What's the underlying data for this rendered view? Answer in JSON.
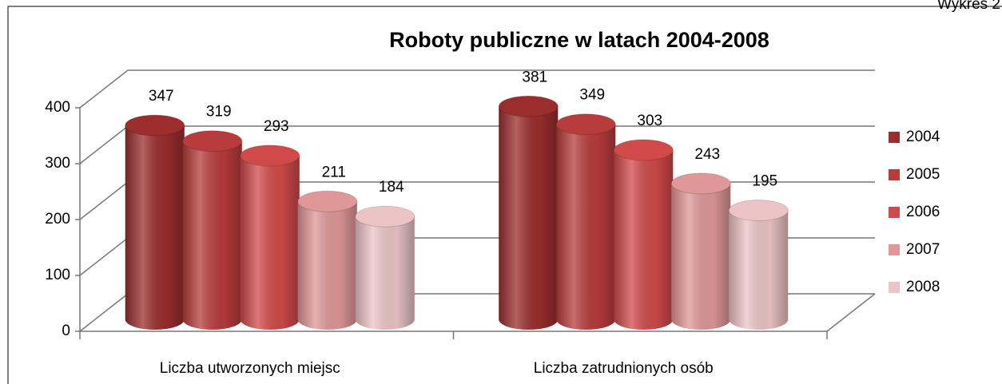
{
  "chart_data": {
    "type": "bar3d",
    "title": "Roboty publiczne w latach 2004-2008",
    "caption": "Wykres 2",
    "categories": [
      "Liczba utworzonych  miejsc",
      "Liczba zatrudnionych osób"
    ],
    "series": [
      {
        "name": "2004",
        "color": "#9b2d2d",
        "values": [
          347,
          381
        ]
      },
      {
        "name": "2005",
        "color": "#b83c3c",
        "values": [
          319,
          349
        ]
      },
      {
        "name": "2006",
        "color": "#d04a4a",
        "values": [
          293,
          303
        ]
      },
      {
        "name": "2007",
        "color": "#df9798",
        "values": [
          211,
          243
        ]
      },
      {
        "name": "2008",
        "color": "#ecc4c6",
        "values": [
          184,
          195
        ]
      }
    ],
    "ylim": [
      0,
      400
    ],
    "yticks": [
      0,
      100,
      200,
      300,
      400
    ],
    "grid": true,
    "legend": "right"
  }
}
